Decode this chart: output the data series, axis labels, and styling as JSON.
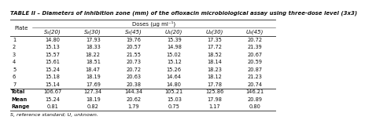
{
  "title": "TABLE II – Diameters of inhibition zone (mm) of the ofloxacin microbiological assay using three-dose level (3x3)",
  "doses_header": "Doses (μg ml⁻¹)",
  "columns": [
    "S₁(20)",
    "S₂(30)",
    "S₃(45)",
    "U₁(20)",
    "U₂(30)",
    "U₃(45)"
  ],
  "plate_label": "Plate",
  "rows": [
    [
      "1",
      "14.80",
      "17.93",
      "19.76",
      "15.39",
      "17.35",
      "20.72"
    ],
    [
      "2",
      "15.13",
      "18.33",
      "20.57",
      "14.98",
      "17.72",
      "21.39"
    ],
    [
      "3",
      "15.57",
      "18.22",
      "21.55",
      "15.02",
      "18.52",
      "20.67"
    ],
    [
      "4",
      "15.61",
      "18.51",
      "20.73",
      "15.12",
      "18.14",
      "20.59"
    ],
    [
      "5",
      "15.24",
      "18.47",
      "20.72",
      "15.26",
      "18.23",
      "20.87"
    ],
    [
      "6",
      "15.18",
      "18.19",
      "20.63",
      "14.64",
      "18.12",
      "21.23"
    ],
    [
      "7",
      "15.14",
      "17.69",
      "20.38",
      "14.80",
      "17.78",
      "20.74"
    ]
  ],
  "summary_rows": [
    [
      "Total",
      "106.67",
      "127.34",
      "144.34",
      "105.21",
      "125.86",
      "146.21"
    ],
    [
      "Mean",
      "15.24",
      "18.19",
      "20.62",
      "15.03",
      "17.98",
      "20.89"
    ],
    [
      "Range",
      "0.81",
      "0.82",
      "1.79",
      "0.75",
      "1.17",
      "0.80"
    ]
  ],
  "footnote": "S, reference standard; U, unknown.",
  "line_color": "#444444",
  "text_color": "#111111",
  "title_fontsize": 5.0,
  "header_fontsize": 5.0,
  "cell_fontsize": 4.8,
  "footnote_fontsize": 4.5
}
